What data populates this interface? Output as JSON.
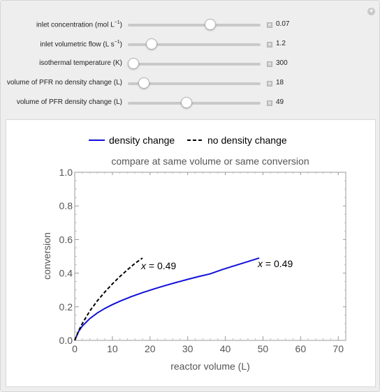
{
  "controls": [
    {
      "label_main": "inlet concentration (mol L",
      "label_sup": "−1",
      "label_end": ")",
      "value": "0.07",
      "fraction": 0.62
    },
    {
      "label_main": "inlet volumetric flow (L s",
      "label_sup": "−1",
      "label_end": ")",
      "value": "1.2",
      "fraction": 0.18
    },
    {
      "label_main": "isothermal temperature (K)",
      "label_sup": "",
      "label_end": "",
      "value": "300",
      "fraction": 0.04
    },
    {
      "label_main": "volume of PFR no density change (L)",
      "label_sup": "",
      "label_end": "",
      "value": "18",
      "fraction": 0.12
    },
    {
      "label_main": "volume of PFR density change (L)",
      "label_sup": "",
      "label_end": "",
      "value": "49",
      "fraction": 0.44
    }
  ],
  "chart_data": {
    "type": "line",
    "title": "compare at same volume or same conversion",
    "xlabel": "reactor volume (L)",
    "ylabel": "conversion",
    "xlim": [
      0,
      72
    ],
    "ylim": [
      0,
      1.0
    ],
    "xticks": [
      0,
      10,
      20,
      30,
      40,
      50,
      60,
      70
    ],
    "yticks": [
      0.0,
      0.2,
      0.4,
      0.6,
      0.8,
      1.0
    ],
    "xtick_labels": [
      "0",
      "10",
      "20",
      "30",
      "40",
      "50",
      "60",
      "70"
    ],
    "ytick_labels": [
      "0.0",
      "0.2",
      "0.4",
      "0.6",
      "0.8",
      "1.0"
    ],
    "legend_position": "top",
    "series": [
      {
        "name": "density change",
        "color": "#1010d8",
        "dash": "solid",
        "x": [
          0,
          1,
          2,
          4,
          6,
          8,
          10,
          12,
          15,
          18,
          21,
          24,
          27,
          30,
          33,
          36,
          39,
          42,
          45,
          49
        ],
        "y": [
          0,
          0.052,
          0.085,
          0.13,
          0.163,
          0.19,
          0.213,
          0.233,
          0.26,
          0.284,
          0.306,
          0.326,
          0.345,
          0.363,
          0.38,
          0.396,
          0.42,
          0.441,
          0.462,
          0.49
        ]
      },
      {
        "name": "no density change",
        "color": "#000000",
        "dash": "dashed",
        "x": [
          0,
          1,
          2,
          4,
          6,
          8,
          10,
          12,
          14,
          16,
          18
        ],
        "y": [
          0,
          0.055,
          0.1,
          0.175,
          0.235,
          0.288,
          0.336,
          0.38,
          0.42,
          0.458,
          0.49
        ]
      }
    ],
    "annotations": [
      {
        "var": "x",
        "text": " = 0.49",
        "x": 18,
        "y": 0.49
      },
      {
        "var": "x",
        "text": " = 0.49",
        "x": 49,
        "y": 0.49
      }
    ]
  }
}
